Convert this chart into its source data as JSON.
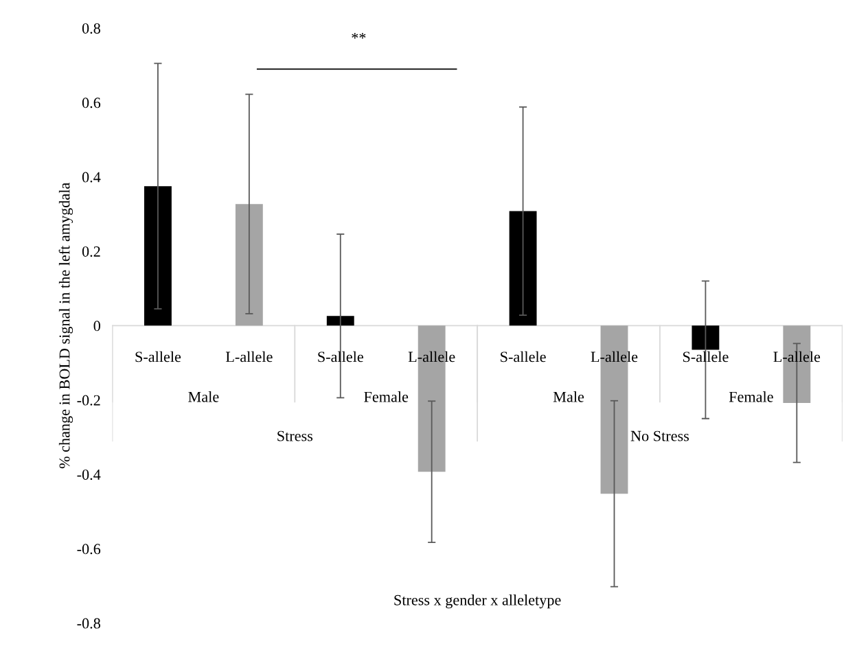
{
  "chart_data": {
    "type": "bar",
    "categories": [
      "S-allele",
      "L-allele",
      "S-allele",
      "L-allele",
      "S-allele",
      "L-allele",
      "S-allele",
      "L-allele"
    ],
    "values": [
      0.375,
      0.327,
      0.026,
      -0.393,
      0.308,
      -0.452,
      -0.065,
      -0.208
    ],
    "colors": [
      "#000000",
      "#a5a5a5",
      "#000000",
      "#a5a5a5",
      "#000000",
      "#a5a5a5",
      "#000000",
      "#a5a5a5"
    ],
    "errors": [
      0.33,
      0.295,
      0.22,
      0.19,
      0.28,
      0.25,
      0.185,
      0.16
    ],
    "ylabel": "% change in BOLD signal in the left amygdala",
    "xlabel": "Stress x gender x alleletype",
    "ylim": [
      -0.8,
      0.8
    ],
    "yticks": [
      -0.8,
      -0.6,
      -0.4,
      -0.2,
      0,
      0.2,
      0.4,
      0.6,
      0.8
    ],
    "annotations": [
      "**",
      "Male",
      "Female",
      "Male",
      "Female",
      "Stress",
      "No Stress"
    ],
    "grid": false,
    "legend": false
  }
}
